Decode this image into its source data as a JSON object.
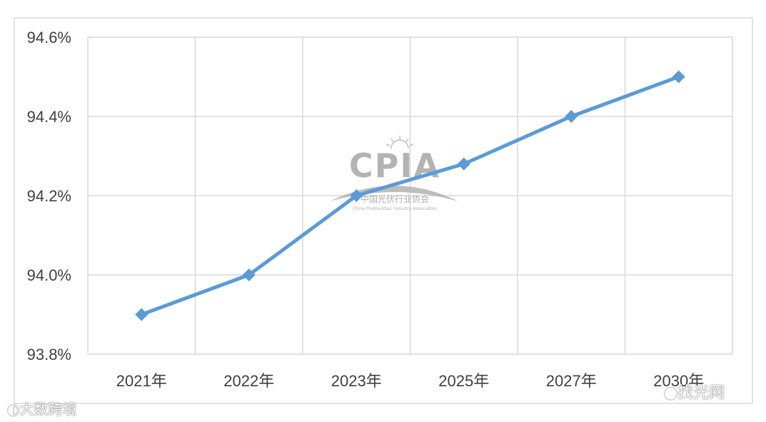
{
  "chart_data": {
    "type": "line",
    "categories": [
      "2021年",
      "2022年",
      "2023年",
      "2025年",
      "2027年",
      "2030年"
    ],
    "series": [
      {
        "values": [
          93.9,
          94.0,
          94.2,
          94.28,
          94.4,
          94.5
        ]
      }
    ],
    "title": "",
    "xlabel": "",
    "ylabel": "",
    "ylim": [
      93.8,
      94.6
    ],
    "yticks": [
      "93.8%",
      "94.0%",
      "94.2%",
      "94.4%",
      "94.6%"
    ],
    "grid": true,
    "legend": "none",
    "line_color": "#5b9bd5"
  },
  "watermarks": {
    "center_logo": "CPIA",
    "center_sub": "中国光伏行业协会",
    "center_sub_en": "China Photovoltaic Industry Association",
    "bottom_left": "大数跨境",
    "bottom_right": "找光网"
  }
}
